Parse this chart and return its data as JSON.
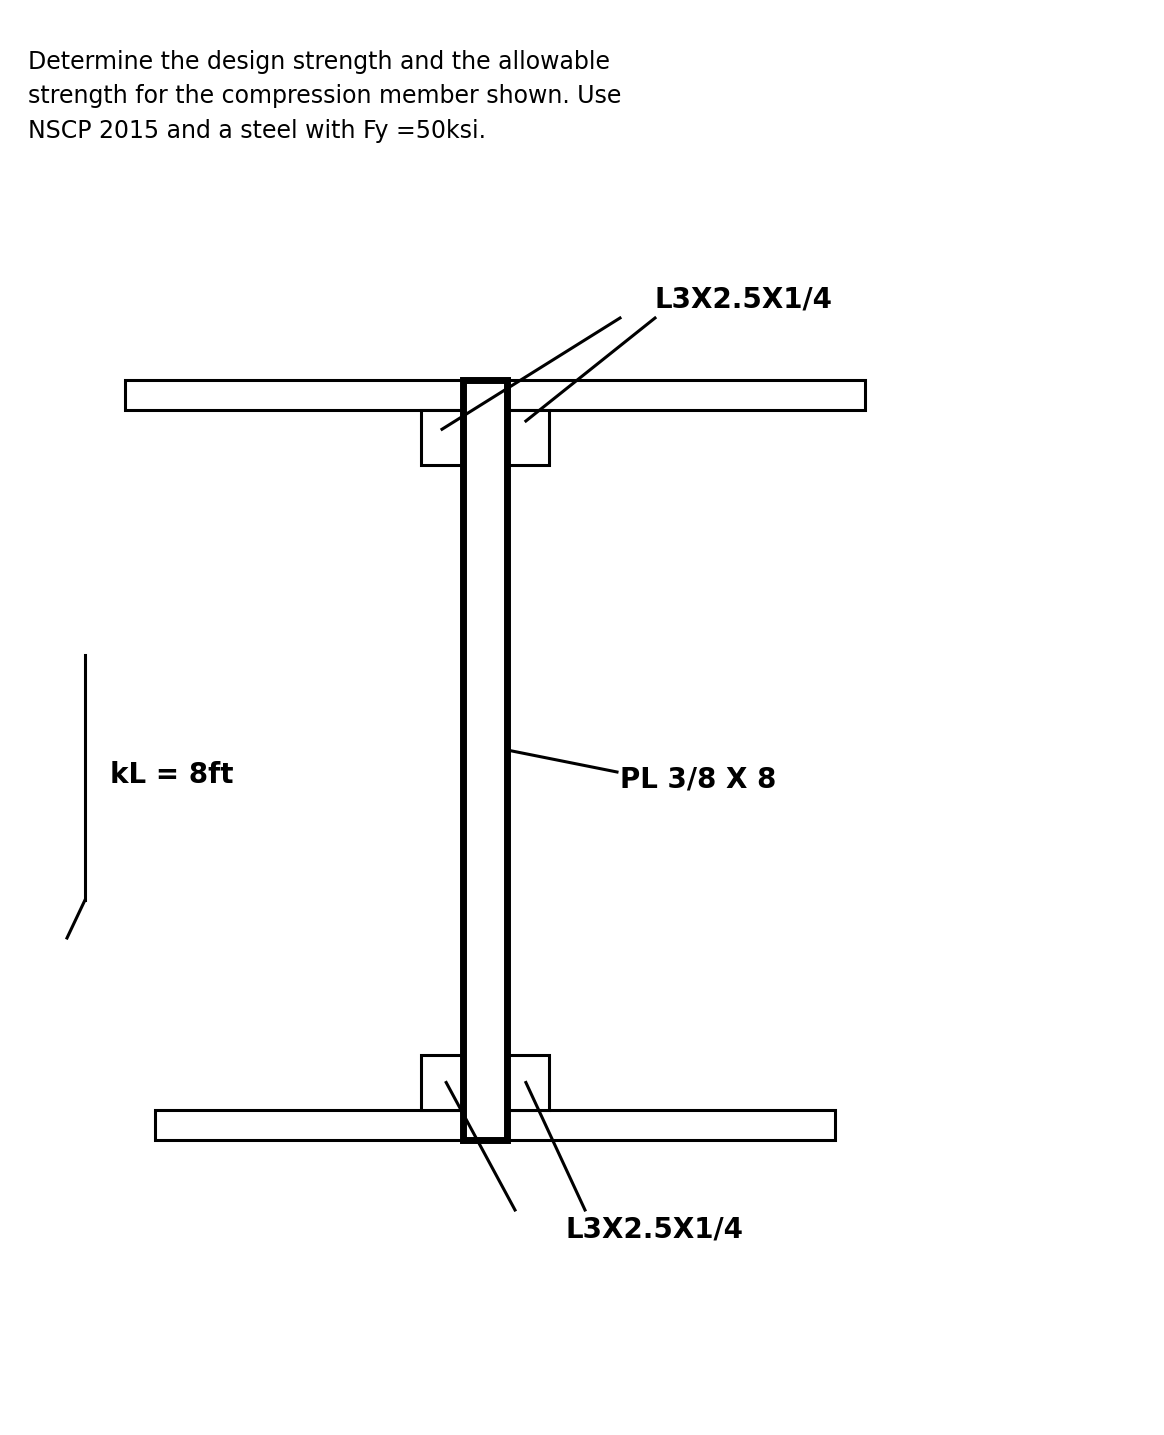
{
  "title_text": "Determine the design strength and the allowable\nstrength for the compression member shown. Use\nNSCP 2015 and a steel with Fy =50ksi.",
  "title_fontsize": 17,
  "label_L_top": "L3X2.5X1/4",
  "label_L_bottom": "L3X2.5X1/4",
  "label_PL": "PL 3/8 X 8",
  "label_kL": "kL = 8ft",
  "bg_color": "#ffffff",
  "line_color": "#000000",
  "lw_thin": 2.2,
  "lw_thick": 5.0,
  "text_color": "#000000",
  "label_fontsize_bold": 20,
  "label_fontsize_title": 17
}
